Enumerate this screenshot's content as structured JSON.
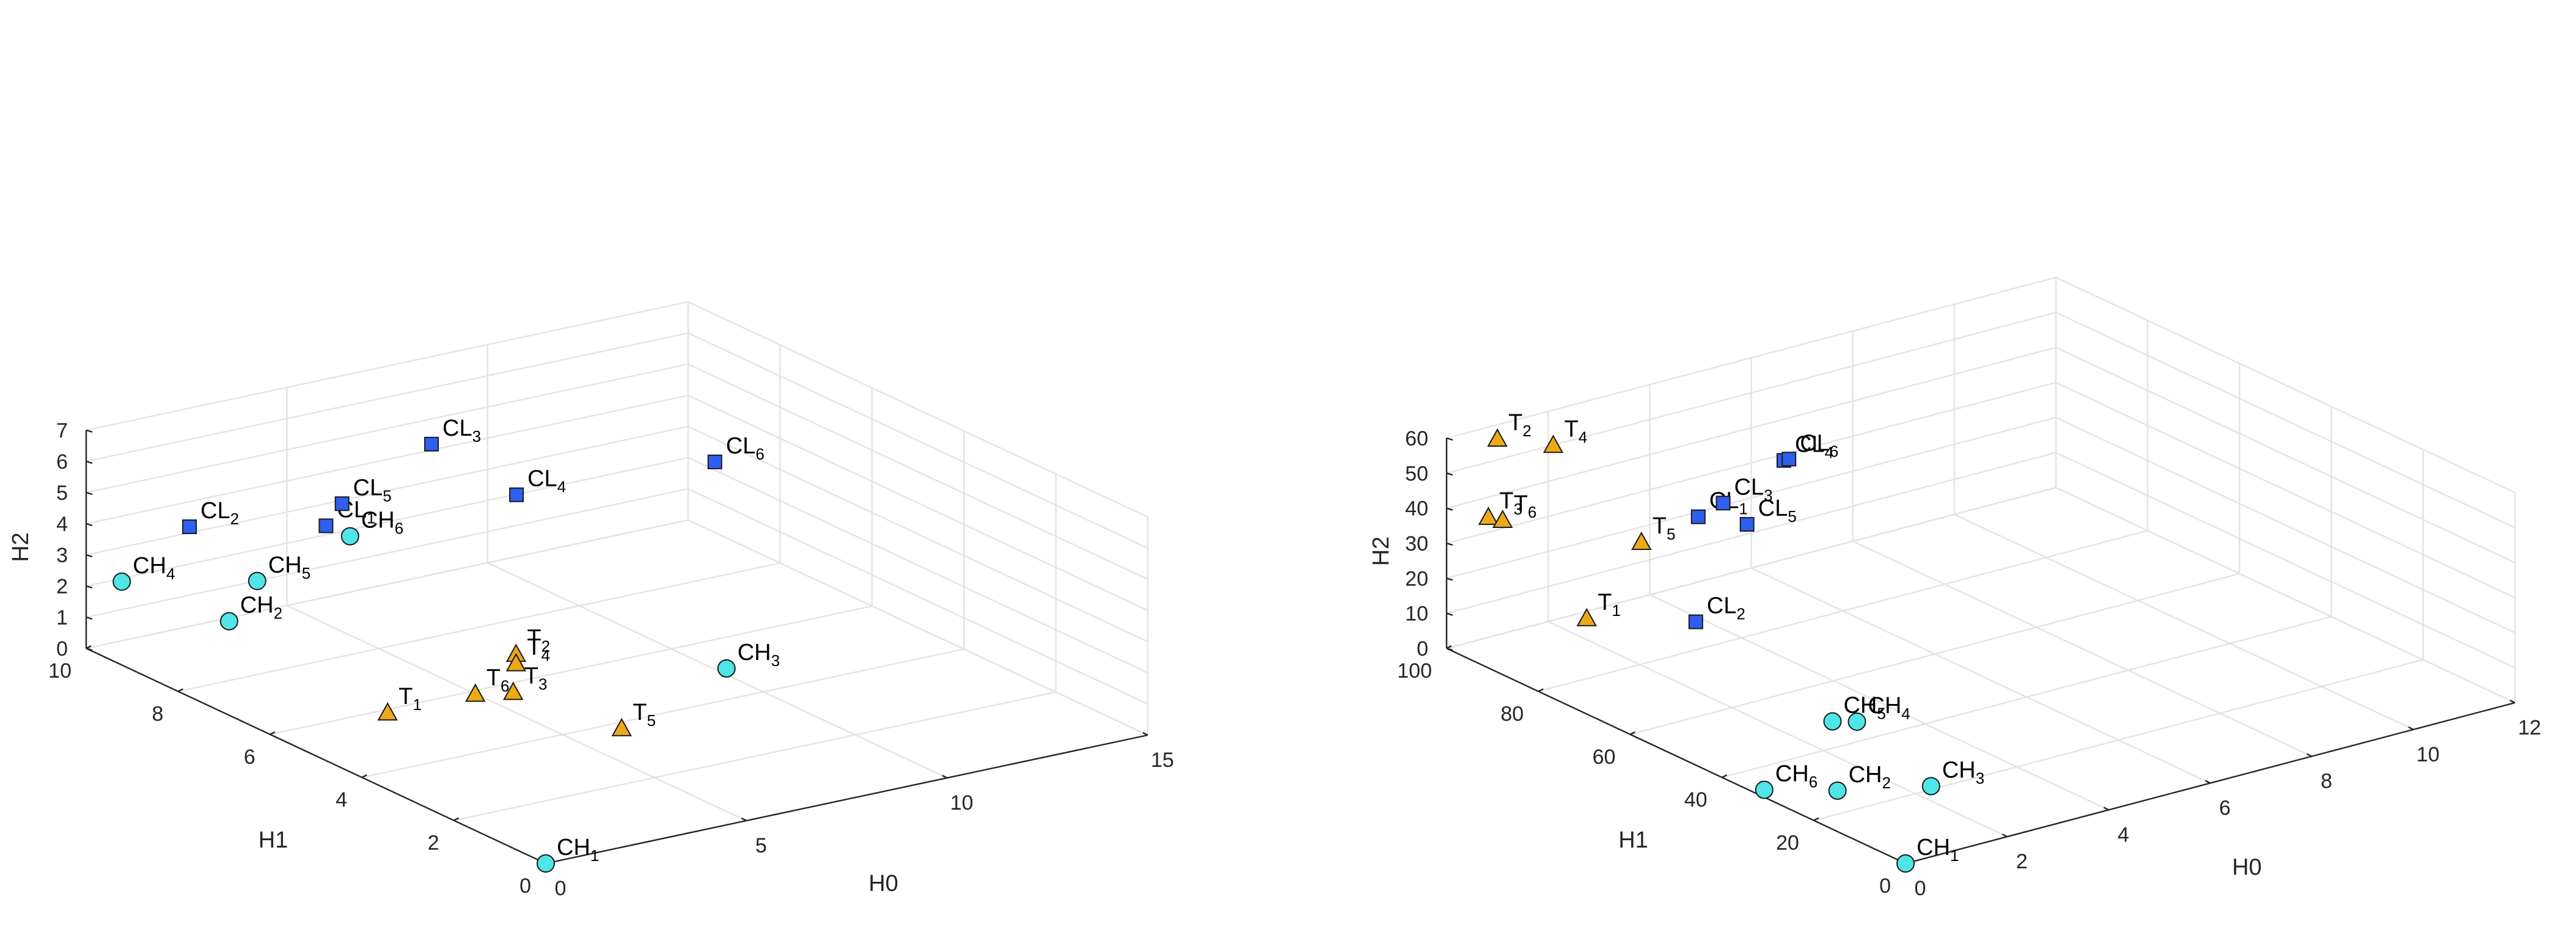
{
  "colors": {
    "grid": "#e3e3e3",
    "axis": "#262626",
    "CH": "#4fe6e8",
    "CL": "#2f5ff0",
    "T": "#eda916",
    "marker_edge": "#1a1a1a"
  },
  "chart_data": [
    {
      "type": "scatter3d",
      "title": "",
      "xlabel": "H0",
      "ylabel": "H1",
      "zlabel": "H2",
      "xlim": [
        0,
        15
      ],
      "ylim": [
        0,
        10
      ],
      "zlim": [
        0,
        7
      ],
      "xticks": [
        "0",
        "5",
        "10",
        "15"
      ],
      "yticks": [
        "0",
        "2",
        "4",
        "6",
        "8",
        "10"
      ],
      "zticks": [
        "0",
        "1",
        "2",
        "3",
        "4",
        "5",
        "6",
        "7"
      ],
      "grid": true,
      "series": [
        {
          "group": "CH",
          "marker": "circle",
          "points": [
            {
              "name": "CH",
              "sub": "1",
              "x": 0,
              "y": 0,
              "z": 0
            },
            {
              "name": "CH",
              "sub": "2",
              "x": 1.5,
              "y": 8.2,
              "z": 1.7
            },
            {
              "name": "CH",
              "sub": "3",
              "x": 10,
              "y": 4.8,
              "z": 0.2
            },
            {
              "name": "CH",
              "sub": "4",
              "x": 0.2,
              "y": 9.4,
              "z": 2.5
            },
            {
              "name": "CH",
              "sub": "5",
              "x": 2.2,
              "y": 8.2,
              "z": 2.8
            },
            {
              "name": "CH",
              "sub": "6",
              "x": 4.4,
              "y": 8.1,
              "z": 3.7
            }
          ]
        },
        {
          "group": "CL",
          "marker": "square",
          "points": [
            {
              "name": "CL",
              "sub": "1",
              "x": 3.8,
              "y": 8.1,
              "z": 4.2
            },
            {
              "name": "CL",
              "sub": "2",
              "x": 1.2,
              "y": 8.8,
              "z": 4.4
            },
            {
              "name": "CL",
              "sub": "3",
              "x": 6.2,
              "y": 7.9,
              "z": 6.3
            },
            {
              "name": "CL",
              "sub": "4",
              "x": 6.6,
              "y": 6.4,
              "z": 5.6
            },
            {
              "name": "CL",
              "sub": "5",
              "x": 4.2,
              "y": 8.1,
              "z": 4.8
            },
            {
              "name": "CL",
              "sub": "6",
              "x": 11.2,
              "y": 6.1,
              "z": 5.6
            }
          ]
        },
        {
          "group": "T",
          "marker": "triangle",
          "points": [
            {
              "name": "T",
              "sub": "1",
              "x": 1.9,
              "y": 5.1,
              "z": 0.8
            },
            {
              "name": "T",
              "sub": "2",
              "x": 5.1,
              "y": 5.1,
              "z": 1.8
            },
            {
              "name": "T",
              "sub": "3",
              "x": 4.8,
              "y": 4.9,
              "z": 0.8
            },
            {
              "name": "T",
              "sub": "4",
              "x": 5.1,
              "y": 5.1,
              "z": 1.5
            },
            {
              "name": "T",
              "sub": "5",
              "x": 5.9,
              "y": 3.5,
              "z": 0.3
            },
            {
              "name": "T",
              "sub": "6",
              "x": 4.2,
              "y": 5.2,
              "z": 0.7
            }
          ]
        }
      ]
    },
    {
      "type": "scatter3d",
      "title": "",
      "xlabel": "H0",
      "ylabel": "H1",
      "zlabel": "H2",
      "xlim": [
        0,
        12
      ],
      "ylim": [
        0,
        100
      ],
      "zlim": [
        0,
        60
      ],
      "xticks": [
        "0",
        "2",
        "4",
        "6",
        "8",
        "10",
        "12"
      ],
      "yticks": [
        "0",
        "20",
        "40",
        "60",
        "80",
        "100"
      ],
      "zticks": [
        "0",
        "10",
        "20",
        "30",
        "40",
        "50",
        "60"
      ],
      "grid": true,
      "series": [
        {
          "group": "CH",
          "marker": "circle",
          "points": [
            {
              "name": "CH",
              "sub": "1",
              "x": 0,
              "y": 0,
              "z": 0
            },
            {
              "name": "CH",
              "sub": "2",
              "x": 1.1,
              "y": 27,
              "z": 0
            },
            {
              "name": "CH",
              "sub": "3",
              "x": 2.4,
              "y": 21,
              "z": 0
            },
            {
              "name": "CH",
              "sub": "4",
              "x": 3.2,
              "y": 46,
              "z": 0
            },
            {
              "name": "CH",
              "sub": "5",
              "x": 2.9,
              "y": 48,
              "z": 0
            },
            {
              "name": "CH",
              "sub": "6",
              "x": 0.2,
              "y": 33,
              "z": 0
            }
          ]
        },
        {
          "group": "CL",
          "marker": "square",
          "points": [
            {
              "name": "CL",
              "sub": "1",
              "x": 3.6,
              "y": 85,
              "z": 33
            },
            {
              "name": "CL",
              "sub": "2",
              "x": 3.1,
              "y": 80,
              "z": 8
            },
            {
              "name": "CL",
              "sub": "3",
              "x": 4.0,
              "y": 84,
              "z": 36
            },
            {
              "name": "CL",
              "sub": "4",
              "x": 6.1,
              "y": 94,
              "z": 34
            },
            {
              "name": "CL",
              "sub": "5",
              "x": 4.2,
              "y": 81,
              "z": 31
            },
            {
              "name": "CL",
              "sub": "6",
              "x": 6.2,
              "y": 94,
              "z": 34
            }
          ]
        },
        {
          "group": "T",
          "marker": "triangle",
          "points": [
            {
              "name": "T",
              "sub": "1",
              "x": 0.5,
              "y": 75,
              "z": 22
            },
            {
              "name": "T",
              "sub": "2",
              "x": 1.0,
              "y": 100,
              "z": 56
            },
            {
              "name": "T",
              "sub": "3",
              "x": 0.1,
              "y": 92,
              "z": 42
            },
            {
              "name": "T",
              "sub": "4",
              "x": 2.1,
              "y": 100,
              "z": 50
            },
            {
              "name": "T",
              "sub": "5",
              "x": 2.3,
              "y": 83,
              "z": 32
            },
            {
              "name": "T",
              "sub": "6",
              "x": 0.2,
              "y": 90,
              "z": 42
            }
          ]
        }
      ]
    }
  ]
}
